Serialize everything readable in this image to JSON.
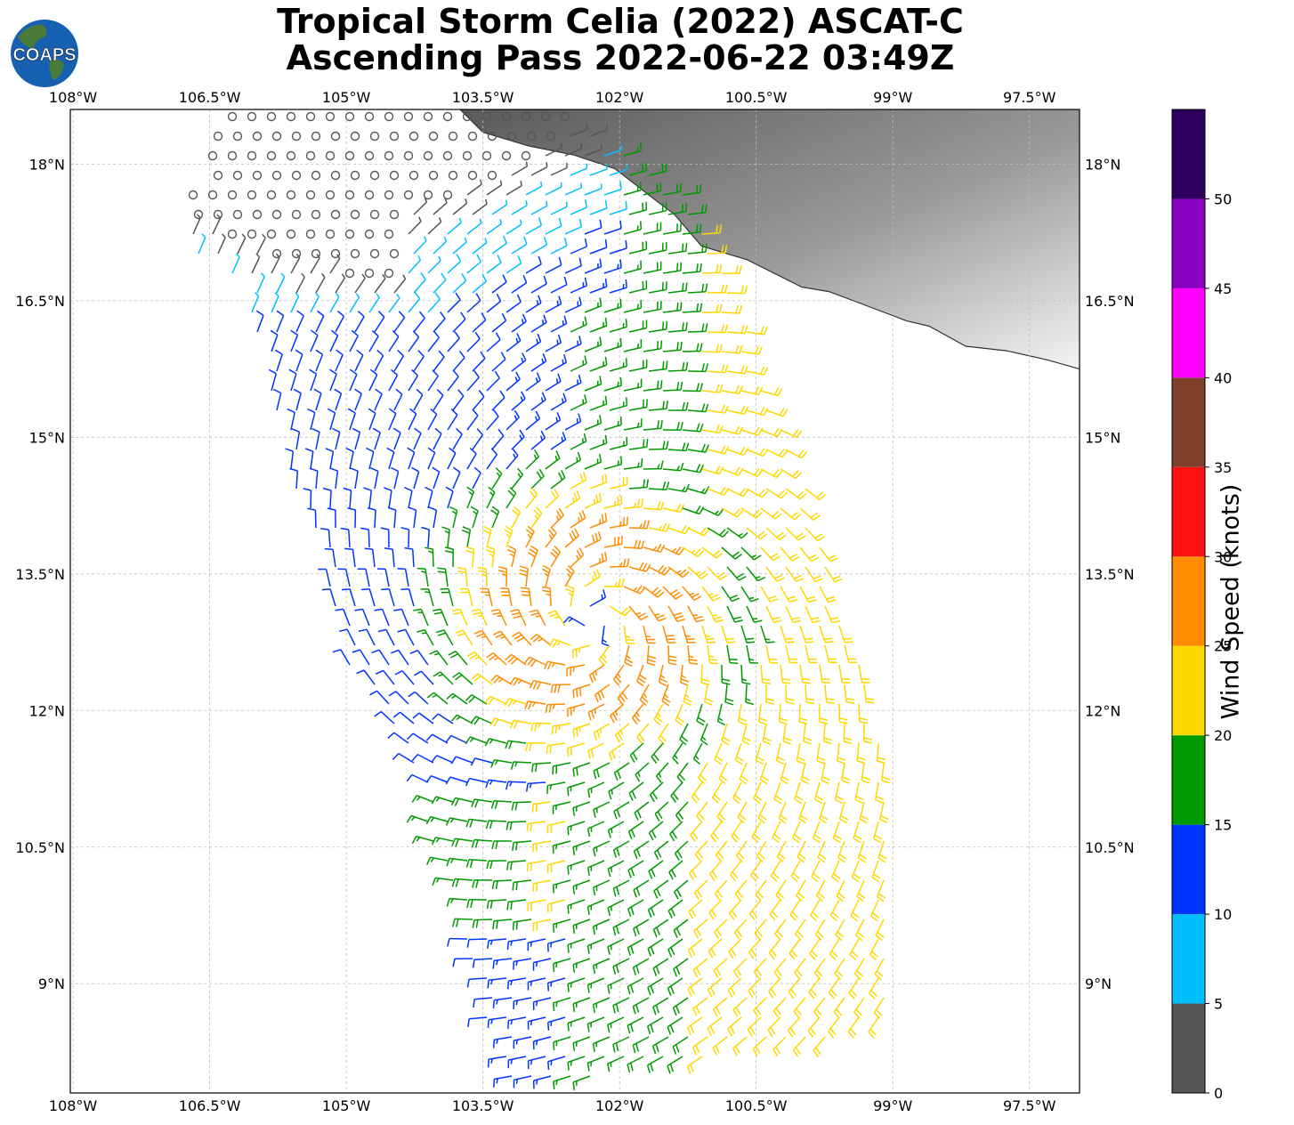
{
  "title": {
    "line1": "Tropical Storm Celia (2022) ASCAT-C",
    "line2": "Ascending Pass 2022-06-22 03:49Z"
  },
  "logo": {
    "text": "COAPS",
    "ocean_color": "#1560b0",
    "land_color": "#4a7a3a"
  },
  "map": {
    "type": "wind-barb-map",
    "lon_range": [
      -108.03,
      -96.95
    ],
    "lat_range": [
      7.8,
      18.6
    ],
    "lon_ticks": [
      {
        "value": -108,
        "label": "108°W"
      },
      {
        "value": -106.5,
        "label": "106.5°W"
      },
      {
        "value": -105,
        "label": "105°W"
      },
      {
        "value": -103.5,
        "label": "103.5°W"
      },
      {
        "value": -102,
        "label": "102°W"
      },
      {
        "value": -100.5,
        "label": "100.5°W"
      },
      {
        "value": -99,
        "label": "99°W"
      },
      {
        "value": -97.5,
        "label": "97.5°W"
      }
    ],
    "lat_ticks": [
      {
        "value": 18,
        "label": "18°N"
      },
      {
        "value": 16.5,
        "label": "16.5°N"
      },
      {
        "value": 15,
        "label": "15°N"
      },
      {
        "value": 13.5,
        "label": "13.5°N"
      },
      {
        "value": 12,
        "label": "12°N"
      },
      {
        "value": 10.5,
        "label": "10.5°N"
      },
      {
        "value": 9,
        "label": "9°N"
      }
    ],
    "grid": true,
    "storm_center": {
      "lon": -102.3,
      "lat": 13.0
    },
    "swath_corners": [
      [
        -106.35,
        18.6
      ],
      [
        -102.7,
        18.6
      ],
      [
        -101.18,
        17.65
      ],
      [
        -100.2,
        15.2
      ],
      [
        -99.1,
        11.8
      ],
      [
        -98.95,
        8.55
      ],
      [
        -103.2,
        7.8
      ],
      [
        -104.45,
        11.8
      ],
      [
        -104.9,
        12.3
      ],
      [
        -105.5,
        14.2
      ],
      [
        -106.2,
        16.7
      ],
      [
        -106.9,
        17.1
      ]
    ],
    "coastline": [
      [
        -103.75,
        18.6
      ],
      [
        -103.5,
        18.35
      ],
      [
        -103.0,
        18.2
      ],
      [
        -102.5,
        18.1
      ],
      [
        -102.05,
        17.95
      ],
      [
        -101.6,
        17.6
      ],
      [
        -101.4,
        17.45
      ],
      [
        -101.1,
        17.1
      ],
      [
        -100.6,
        16.95
      ],
      [
        -100.0,
        16.65
      ],
      [
        -99.7,
        16.6
      ],
      [
        -99.3,
        16.45
      ],
      [
        -98.85,
        16.28
      ],
      [
        -98.6,
        16.22
      ],
      [
        -98.2,
        16.0
      ],
      [
        -97.75,
        15.95
      ],
      [
        -97.3,
        15.85
      ],
      [
        -96.95,
        15.75
      ]
    ],
    "terrain_gradient": [
      "#5a5a5a",
      "#9a9a9a",
      "#f4f4f4"
    ]
  },
  "colorbar": {
    "label": "Wind Speed (knots)",
    "ticks": [
      "0",
      "5",
      "10",
      "15",
      "20",
      "25",
      "30",
      "35",
      "40",
      "45",
      "50"
    ],
    "bins": [
      {
        "min": 0,
        "max": 5,
        "color": "#555555"
      },
      {
        "min": 5,
        "max": 10,
        "color": "#00bfff"
      },
      {
        "min": 10,
        "max": 15,
        "color": "#0033ff"
      },
      {
        "min": 15,
        "max": 20,
        "color": "#009900"
      },
      {
        "min": 20,
        "max": 25,
        "color": "#ffd700"
      },
      {
        "min": 25,
        "max": 30,
        "color": "#ff8c00"
      },
      {
        "min": 30,
        "max": 35,
        "color": "#ff1111"
      },
      {
        "min": 35,
        "max": 40,
        "color": "#803f2a"
      },
      {
        "min": 40,
        "max": 45,
        "color": "#ff00ff"
      },
      {
        "min": 45,
        "max": 50,
        "color": "#8a00c0"
      },
      {
        "min": 50,
        "max": 55,
        "color": "#2e005e"
      }
    ]
  }
}
